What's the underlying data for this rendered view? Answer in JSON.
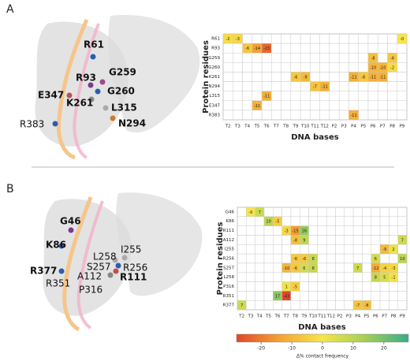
{
  "chart_data": [
    {
      "type": "heatmap",
      "panel": "A",
      "xlabel": "DNA bases",
      "ylabel": "Protein residues",
      "x": [
        "T2",
        "T3",
        "T4",
        "T5",
        "T6",
        "T7",
        "T8",
        "T9",
        "T10",
        "T11",
        "T12",
        "P2",
        "P3",
        "P4",
        "P5",
        "P6",
        "P7",
        "P8",
        "P9"
      ],
      "y": [
        "R61",
        "R93",
        "G259",
        "G260",
        "K261",
        "N294",
        "L315",
        "E347",
        "R383"
      ],
      "values": [
        [
          -2,
          -3,
          null,
          null,
          null,
          null,
          null,
          null,
          null,
          null,
          null,
          null,
          null,
          null,
          null,
          null,
          null,
          null,
          0
        ],
        [
          null,
          null,
          -6,
          -14,
          -23,
          null,
          null,
          null,
          null,
          null,
          null,
          null,
          null,
          null,
          null,
          null,
          null,
          null,
          null
        ],
        [
          null,
          null,
          null,
          null,
          null,
          null,
          null,
          null,
          null,
          null,
          null,
          null,
          null,
          null,
          null,
          -8,
          null,
          -6,
          null
        ],
        [
          null,
          null,
          null,
          null,
          null,
          null,
          null,
          null,
          null,
          null,
          null,
          null,
          null,
          null,
          null,
          -10,
          -10,
          -2,
          null
        ],
        [
          null,
          null,
          null,
          null,
          null,
          null,
          null,
          -6,
          -9,
          null,
          null,
          null,
          null,
          -11,
          -6,
          -11,
          -11,
          null,
          null
        ],
        [
          null,
          null,
          null,
          null,
          null,
          null,
          null,
          null,
          null,
          -7,
          -11,
          null,
          null,
          null,
          null,
          null,
          null,
          null,
          null
        ],
        [
          null,
          null,
          null,
          null,
          -11,
          null,
          null,
          null,
          null,
          null,
          null,
          null,
          null,
          null,
          null,
          null,
          null,
          null,
          null
        ],
        [
          null,
          null,
          null,
          -11,
          null,
          null,
          null,
          null,
          null,
          null,
          null,
          null,
          null,
          null,
          null,
          null,
          null,
          null,
          null
        ],
        [
          null,
          null,
          null,
          null,
          null,
          null,
          null,
          null,
          null,
          null,
          null,
          null,
          null,
          -11,
          null,
          null,
          null,
          null,
          null
        ]
      ],
      "value_labels": [
        [
          null,
          null,
          null,
          null,
          null,
          null,
          null,
          null,
          null,
          null,
          null,
          null,
          null,
          null,
          null,
          null,
          null,
          null,
          "-0"
        ],
        [
          null,
          null,
          null,
          null,
          null,
          null,
          null,
          null,
          null,
          null,
          null,
          null,
          null,
          null,
          null,
          null,
          null,
          null,
          null
        ],
        [
          null,
          null,
          null,
          null,
          null,
          null,
          null,
          null,
          null,
          null,
          null,
          null,
          null,
          null,
          null,
          null,
          null,
          null,
          null
        ],
        [
          null,
          null,
          null,
          null,
          null,
          null,
          null,
          null,
          null,
          null,
          null,
          null,
          null,
          null,
          null,
          null,
          null,
          null,
          null
        ],
        [
          null,
          null,
          null,
          null,
          null,
          null,
          null,
          null,
          null,
          null,
          null,
          null,
          null,
          null,
          null,
          null,
          null,
          null,
          null
        ],
        [
          null,
          null,
          null,
          null,
          null,
          null,
          null,
          null,
          null,
          null,
          null,
          null,
          null,
          null,
          null,
          null,
          null,
          null,
          null
        ],
        [
          null,
          null,
          null,
          null,
          null,
          null,
          null,
          null,
          null,
          null,
          null,
          null,
          null,
          null,
          null,
          null,
          null,
          null,
          null
        ],
        [
          null,
          null,
          null,
          null,
          null,
          null,
          null,
          null,
          null,
          null,
          null,
          null,
          null,
          null,
          null,
          null,
          null,
          null,
          null
        ],
        [
          null,
          null,
          null,
          null,
          null,
          null,
          null,
          null,
          null,
          null,
          null,
          null,
          null,
          null,
          null,
          null,
          null,
          null,
          null
        ]
      ],
      "structure_labels": [
        "R61",
        "R93",
        "G259",
        "G260",
        "E347",
        "K261",
        "L315",
        "R383",
        "N294"
      ]
    },
    {
      "type": "heatmap",
      "panel": "B",
      "xlabel": "DNA bases",
      "ylabel": "Protein residues",
      "x": [
        "T2",
        "T3",
        "T4",
        "T5",
        "T6",
        "T7",
        "T8",
        "T9",
        "T10",
        "T11",
        "T12",
        "P2",
        "P3",
        "P4",
        "P5",
        "P6",
        "P7",
        "P8",
        "P9"
      ],
      "y": [
        "G46",
        "K86",
        "R111",
        "A112",
        "I255",
        "R256",
        "S257",
        "L258",
        "P316",
        "R351",
        "R377"
      ],
      "values": [
        [
          null,
          0,
          7,
          null,
          null,
          null,
          null,
          null,
          null,
          null,
          null,
          null,
          null,
          null,
          null,
          null,
          null,
          null,
          null
        ],
        [
          null,
          null,
          null,
          10,
          -5,
          null,
          null,
          null,
          null,
          null,
          null,
          null,
          null,
          null,
          null,
          null,
          null,
          null,
          null
        ],
        [
          null,
          null,
          null,
          null,
          null,
          -3,
          -15,
          16,
          null,
          null,
          null,
          null,
          null,
          null,
          null,
          null,
          null,
          null,
          null
        ],
        [
          null,
          null,
          null,
          null,
          null,
          null,
          -8,
          9,
          null,
          null,
          null,
          null,
          null,
          null,
          null,
          null,
          null,
          null,
          7
        ],
        [
          null,
          null,
          null,
          null,
          null,
          null,
          null,
          null,
          null,
          null,
          null,
          null,
          null,
          null,
          null,
          null,
          -9,
          2,
          null
        ],
        [
          null,
          null,
          null,
          null,
          null,
          null,
          -6,
          -6,
          8,
          null,
          null,
          null,
          null,
          null,
          null,
          6,
          null,
          null,
          10
        ],
        [
          null,
          null,
          null,
          null,
          null,
          -10,
          -6,
          6,
          8,
          null,
          null,
          null,
          null,
          7,
          null,
          -12,
          -4,
          -3,
          null
        ],
        [
          null,
          null,
          null,
          null,
          null,
          null,
          null,
          null,
          null,
          null,
          null,
          null,
          null,
          null,
          null,
          8,
          5,
          -1,
          null
        ],
        [
          null,
          null,
          null,
          null,
          null,
          1,
          -5,
          null,
          null,
          null,
          null,
          null,
          null,
          null,
          null,
          null,
          null,
          null,
          null
        ],
        [
          null,
          null,
          null,
          null,
          17,
          -43,
          null,
          null,
          null,
          null,
          null,
          null,
          null,
          null,
          null,
          null,
          null,
          null,
          null
        ],
        [
          7,
          null,
          null,
          null,
          null,
          null,
          null,
          null,
          null,
          null,
          null,
          null,
          null,
          -7,
          -8,
          null,
          null,
          null,
          null
        ]
      ],
      "value_labels": [
        [
          null,
          "-0",
          null,
          null,
          null,
          null,
          null,
          null,
          null,
          null,
          null,
          null,
          null,
          null,
          null,
          null,
          null,
          null,
          null
        ],
        [
          null,
          null,
          null,
          null,
          null,
          null,
          null,
          null,
          null,
          null,
          null,
          null,
          null,
          null,
          null,
          null,
          null,
          null,
          null
        ],
        [
          null,
          null,
          null,
          null,
          null,
          null,
          null,
          null,
          null,
          null,
          null,
          null,
          null,
          null,
          null,
          null,
          null,
          null,
          null
        ],
        [
          null,
          null,
          null,
          null,
          null,
          null,
          null,
          null,
          null,
          null,
          null,
          null,
          null,
          null,
          null,
          null,
          null,
          null,
          null
        ],
        [
          null,
          null,
          null,
          null,
          null,
          null,
          null,
          null,
          null,
          null,
          null,
          null,
          null,
          null,
          null,
          null,
          null,
          null,
          null
        ],
        [
          null,
          null,
          null,
          null,
          null,
          null,
          null,
          null,
          null,
          null,
          null,
          null,
          null,
          null,
          null,
          null,
          null,
          null,
          null
        ],
        [
          null,
          null,
          null,
          null,
          null,
          null,
          null,
          null,
          null,
          null,
          null,
          null,
          null,
          null,
          null,
          null,
          null,
          null,
          null
        ],
        [
          null,
          null,
          null,
          null,
          null,
          null,
          null,
          null,
          null,
          null,
          null,
          null,
          null,
          null,
          null,
          null,
          null,
          null,
          null
        ],
        [
          null,
          null,
          null,
          null,
          null,
          null,
          null,
          null,
          null,
          null,
          null,
          null,
          null,
          null,
          null,
          null,
          null,
          null,
          null
        ],
        [
          null,
          null,
          null,
          null,
          null,
          null,
          null,
          null,
          null,
          null,
          null,
          null,
          null,
          null,
          null,
          null,
          null,
          null,
          null
        ],
        [
          null,
          null,
          null,
          null,
          null,
          null,
          null,
          null,
          null,
          null,
          null,
          null,
          null,
          null,
          null,
          null,
          null,
          null,
          null
        ]
      ],
      "structure_labels": [
        "G46",
        "K86",
        "R377",
        "L258",
        "I255",
        "S257",
        "R256",
        "A112",
        "R111",
        "R351",
        "P316"
      ],
      "colorbar": {
        "label": "Δ% contact frequency",
        "lim": [
          -28,
          28
        ],
        "ticks": [
          -20,
          -10,
          0,
          10,
          20
        ]
      }
    }
  ],
  "colormap": [
    "#e0462b",
    "#f4a233",
    "#f7e54a",
    "#a3cf55",
    "#38ab8a"
  ]
}
